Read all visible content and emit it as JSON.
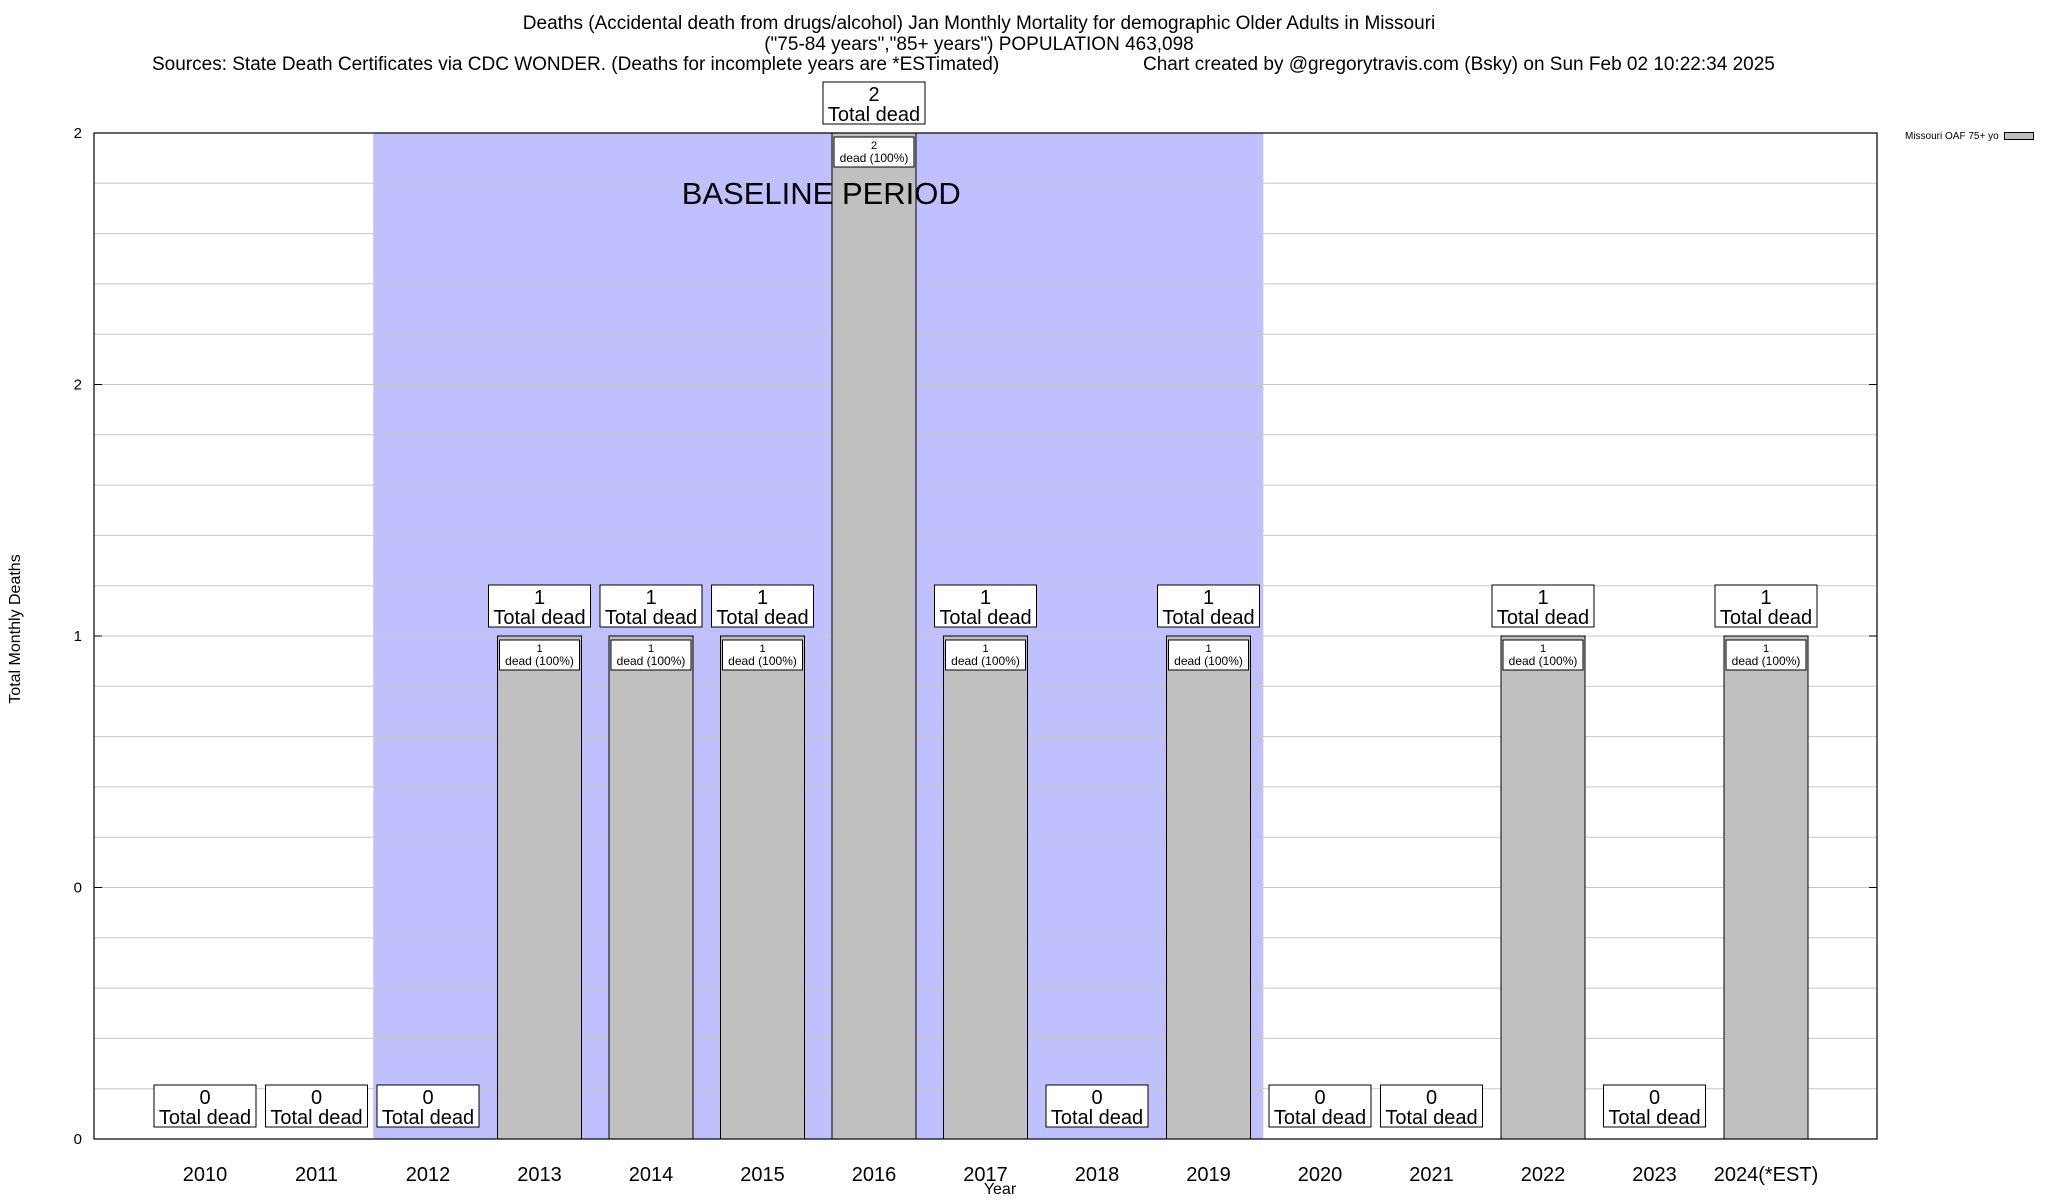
{
  "header": {
    "title": "Deaths (Accidental death from drugs/alcohol) Jan Monthly Mortality for demographic Older Adults in Missouri",
    "subtitle": "(\"75-84 years\",\"85+ years\") POPULATION 463,098",
    "sources": "Sources: State Death Certificates via CDC WONDER. (Deaths for incomplete years are *ESTimated)",
    "credit": "Chart created by @gregorytravis.com (Bsky) on Sun Feb 02 10:22:34 2025"
  },
  "chart_data": {
    "type": "bar",
    "title": "Deaths (Accidental death from drugs/alcohol) Jan Monthly Mortality for demographic Older Adults in Missouri",
    "xlabel": "Year",
    "ylabel": "Total Monthly Deaths",
    "categories": [
      "2010",
      "2011",
      "2012",
      "2013",
      "2014",
      "2015",
      "2016",
      "2017",
      "2018",
      "2019",
      "2020",
      "2021",
      "2022",
      "2023",
      "2024(*EST)"
    ],
    "series": [
      {
        "name": "Missouri OAF 75+ yo",
        "values": [
          0,
          0,
          0,
          1,
          1,
          1,
          2,
          1,
          0,
          1,
          0,
          0,
          1,
          0,
          1
        ],
        "color": "#c0c0c0"
      }
    ],
    "total_labels": [
      "Total dead",
      "Total dead",
      "Total dead",
      "Total dead",
      "Total dead",
      "Total dead",
      "Total dead",
      "Total dead",
      "Total dead",
      "Total dead",
      "Total dead",
      "Total dead",
      "Total dead",
      "Total dead",
      "Total dead"
    ],
    "inner_labels": [
      "",
      "",
      "",
      "dead (100%)",
      "dead (100%)",
      "dead (100%)",
      "dead (100%)",
      "dead (100%)",
      "",
      "dead (100%)",
      "",
      "",
      "dead (100%)",
      "",
      "dead (100%)"
    ],
    "yticks": [
      "0",
      "0",
      "1",
      "2",
      "2"
    ],
    "ylim": [
      0,
      2
    ],
    "grid": true,
    "baseline_period": {
      "label": "BASELINE PERIOD",
      "from": "2012",
      "to": "2019",
      "color": "#c0c0ff"
    },
    "legend": {
      "position": "top-right",
      "entries": [
        "Missouri OAF 75+ yo"
      ]
    }
  }
}
